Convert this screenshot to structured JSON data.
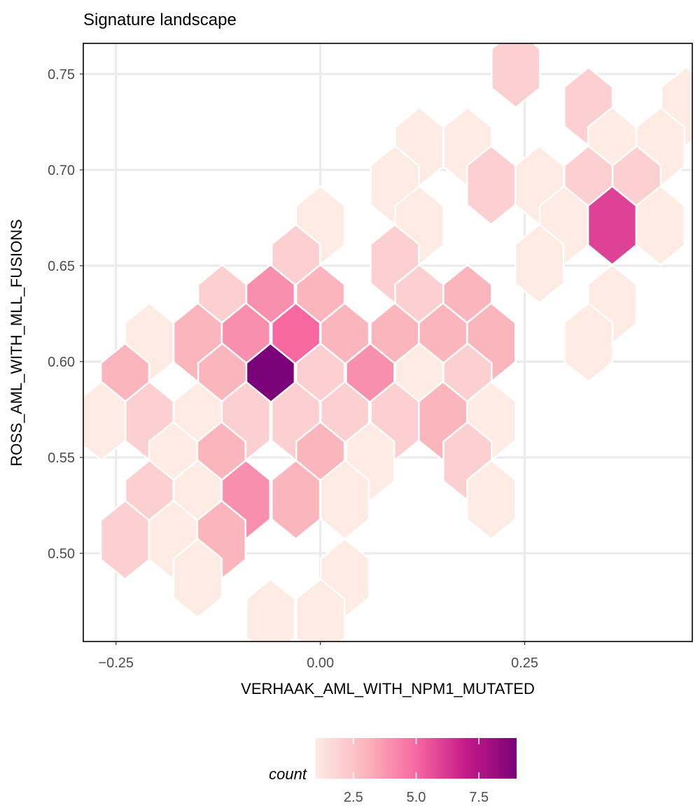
{
  "chart_data": {
    "type": "heatmap",
    "subtype": "hexbin",
    "title": "Signature landscape",
    "xlabel": "VERHAAK_AML_WITH_NPM1_MUTATED",
    "ylabel": "ROSS_AML_WITH_MLL_FUSIONS",
    "xlim": [
      -0.29,
      0.455
    ],
    "ylim": [
      0.454,
      0.766
    ],
    "x_ticks": [
      -0.25,
      0.0,
      0.25
    ],
    "x_tick_labels": [
      "−0.25",
      "0.00",
      "0.25"
    ],
    "y_ticks": [
      0.5,
      0.55,
      0.6,
      0.65,
      0.7,
      0.75
    ],
    "y_tick_labels": [
      "0.50",
      "0.55",
      "0.60",
      "0.65",
      "0.70",
      "0.75"
    ],
    "grid": true,
    "legend": {
      "title": "count",
      "position": "bottom",
      "range": [
        1,
        9
      ],
      "ticks": [
        2.5,
        5.0,
        7.5
      ],
      "tick_labels": [
        "2.5",
        "5.0",
        "7.5"
      ],
      "colors": [
        "#fdebe4",
        "#fbb5bc",
        "#f768a1",
        "#c51b8a",
        "#7a0177"
      ]
    },
    "hex_size_data": {
      "dx": 0.0295,
      "dy": 0.0205
    },
    "bins": [
      {
        "x": 0.239,
        "y": 0.753,
        "count": 2
      },
      {
        "x": 0.328,
        "y": 0.733,
        "count": 2
      },
      {
        "x": 0.447,
        "y": 0.733,
        "count": 1
      },
      {
        "x": 0.121,
        "y": 0.712,
        "count": 1
      },
      {
        "x": 0.18,
        "y": 0.712,
        "count": 1
      },
      {
        "x": 0.357,
        "y": 0.712,
        "count": 1
      },
      {
        "x": 0.416,
        "y": 0.712,
        "count": 1
      },
      {
        "x": 0.091,
        "y": 0.692,
        "count": 1
      },
      {
        "x": 0.209,
        "y": 0.692,
        "count": 2
      },
      {
        "x": 0.268,
        "y": 0.692,
        "count": 1
      },
      {
        "x": 0.328,
        "y": 0.692,
        "count": 2
      },
      {
        "x": 0.387,
        "y": 0.692,
        "count": 2
      },
      {
        "x": 0.0,
        "y": 0.671,
        "count": 1
      },
      {
        "x": 0.121,
        "y": 0.671,
        "count": 1
      },
      {
        "x": 0.298,
        "y": 0.671,
        "count": 1
      },
      {
        "x": 0.357,
        "y": 0.671,
        "count": 6
      },
      {
        "x": 0.416,
        "y": 0.671,
        "count": 1
      },
      {
        "x": -0.03,
        "y": 0.651,
        "count": 2
      },
      {
        "x": 0.091,
        "y": 0.651,
        "count": 2
      },
      {
        "x": 0.268,
        "y": 0.651,
        "count": 1
      },
      {
        "x": -0.12,
        "y": 0.63,
        "count": 2
      },
      {
        "x": -0.061,
        "y": 0.63,
        "count": 4
      },
      {
        "x": 0.0,
        "y": 0.63,
        "count": 3
      },
      {
        "x": 0.121,
        "y": 0.63,
        "count": 2
      },
      {
        "x": 0.18,
        "y": 0.63,
        "count": 3
      },
      {
        "x": 0.357,
        "y": 0.63,
        "count": 1
      },
      {
        "x": -0.209,
        "y": 0.61,
        "count": 1
      },
      {
        "x": -0.15,
        "y": 0.61,
        "count": 3
      },
      {
        "x": -0.091,
        "y": 0.61,
        "count": 4
      },
      {
        "x": -0.03,
        "y": 0.61,
        "count": 5
      },
      {
        "x": 0.03,
        "y": 0.61,
        "count": 3
      },
      {
        "x": 0.091,
        "y": 0.61,
        "count": 3
      },
      {
        "x": 0.15,
        "y": 0.61,
        "count": 3
      },
      {
        "x": 0.209,
        "y": 0.61,
        "count": 3
      },
      {
        "x": 0.328,
        "y": 0.61,
        "count": 1
      },
      {
        "x": -0.239,
        "y": 0.589,
        "count": 3
      },
      {
        "x": -0.12,
        "y": 0.589,
        "count": 3
      },
      {
        "x": -0.061,
        "y": 0.589,
        "count": 9
      },
      {
        "x": 0.0,
        "y": 0.589,
        "count": 2
      },
      {
        "x": 0.061,
        "y": 0.589,
        "count": 4
      },
      {
        "x": 0.121,
        "y": 0.589,
        "count": 1
      },
      {
        "x": 0.18,
        "y": 0.589,
        "count": 2
      },
      {
        "x": -0.268,
        "y": 0.569,
        "count": 1
      },
      {
        "x": -0.209,
        "y": 0.569,
        "count": 2
      },
      {
        "x": -0.15,
        "y": 0.569,
        "count": 1
      },
      {
        "x": -0.091,
        "y": 0.569,
        "count": 2
      },
      {
        "x": -0.03,
        "y": 0.569,
        "count": 2
      },
      {
        "x": 0.03,
        "y": 0.569,
        "count": 2
      },
      {
        "x": 0.091,
        "y": 0.569,
        "count": 2
      },
      {
        "x": 0.15,
        "y": 0.569,
        "count": 3
      },
      {
        "x": 0.209,
        "y": 0.569,
        "count": 1
      },
      {
        "x": -0.18,
        "y": 0.548,
        "count": 1
      },
      {
        "x": -0.121,
        "y": 0.548,
        "count": 3
      },
      {
        "x": 0.0,
        "y": 0.548,
        "count": 3
      },
      {
        "x": 0.061,
        "y": 0.548,
        "count": 1
      },
      {
        "x": 0.18,
        "y": 0.548,
        "count": 2
      },
      {
        "x": -0.209,
        "y": 0.528,
        "count": 2
      },
      {
        "x": -0.15,
        "y": 0.528,
        "count": 1
      },
      {
        "x": -0.091,
        "y": 0.528,
        "count": 4
      },
      {
        "x": -0.03,
        "y": 0.528,
        "count": 3
      },
      {
        "x": 0.03,
        "y": 0.528,
        "count": 1
      },
      {
        "x": 0.209,
        "y": 0.528,
        "count": 1
      },
      {
        "x": -0.239,
        "y": 0.507,
        "count": 2
      },
      {
        "x": -0.18,
        "y": 0.507,
        "count": 1
      },
      {
        "x": -0.121,
        "y": 0.507,
        "count": 3
      },
      {
        "x": -0.15,
        "y": 0.487,
        "count": 1
      },
      {
        "x": 0.03,
        "y": 0.487,
        "count": 1
      },
      {
        "x": -0.061,
        "y": 0.466,
        "count": 1
      },
      {
        "x": 0.0,
        "y": 0.466,
        "count": 1
      }
    ]
  }
}
